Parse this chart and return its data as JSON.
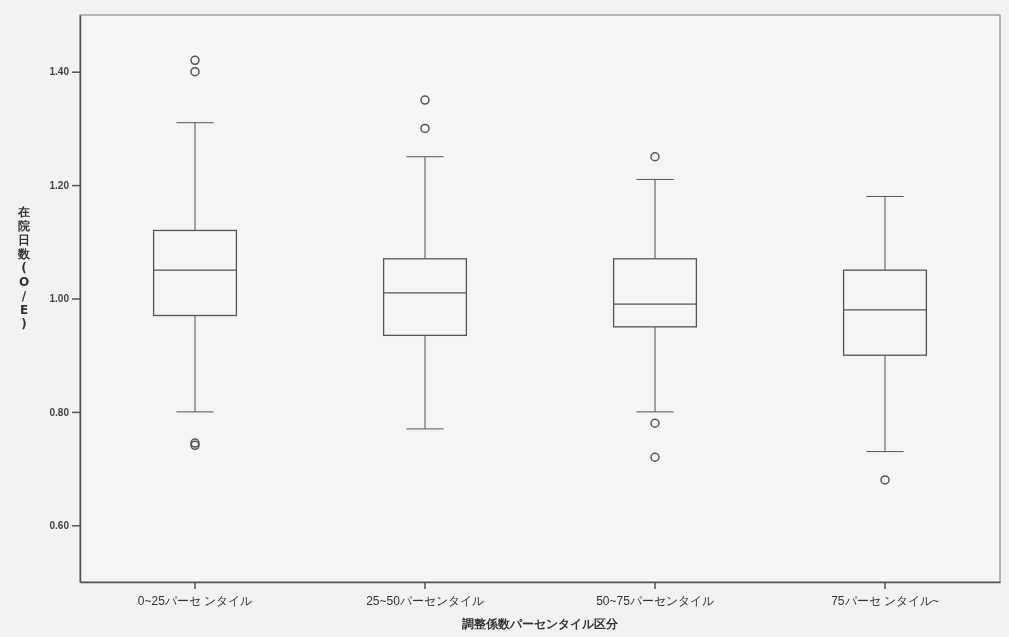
{
  "chart_data": {
    "type": "box",
    "xlabel": "調整係数パーセンタイル区分",
    "ylabel": "在院日数(O/E)",
    "categories": [
      "0~25パーセ ンタイル",
      "25~50パーセンタイル",
      "50~75パーセンタイル",
      "75パーセ ンタイル~"
    ],
    "ylim": [
      0.5,
      1.5
    ],
    "yticks": [
      {
        "value": 0.6,
        "label": "0.60"
      },
      {
        "value": 0.8,
        "label": "0.80"
      },
      {
        "value": 1.0,
        "label": "1.00"
      },
      {
        "value": 1.2,
        "label": "1.20"
      },
      {
        "value": 1.4,
        "label": "1.40"
      }
    ],
    "grid": false,
    "color": "#555555",
    "boxes": [
      {
        "low": 0.8,
        "q1": 0.97,
        "median": 1.05,
        "q3": 1.12,
        "high": 1.31,
        "outliers": [
          1.42,
          1.4,
          0.745,
          0.741
        ]
      },
      {
        "low": 0.77,
        "q1": 0.935,
        "median": 1.01,
        "q3": 1.07,
        "high": 1.25,
        "outliers": [
          1.35,
          1.3
        ]
      },
      {
        "low": 0.8,
        "q1": 0.95,
        "median": 0.99,
        "q3": 1.07,
        "high": 1.21,
        "outliers": [
          1.25,
          0.78,
          0.72
        ]
      },
      {
        "low": 0.73,
        "q1": 0.9,
        "median": 0.98,
        "q3": 1.05,
        "high": 1.18,
        "outliers": [
          0.68
        ]
      }
    ]
  }
}
